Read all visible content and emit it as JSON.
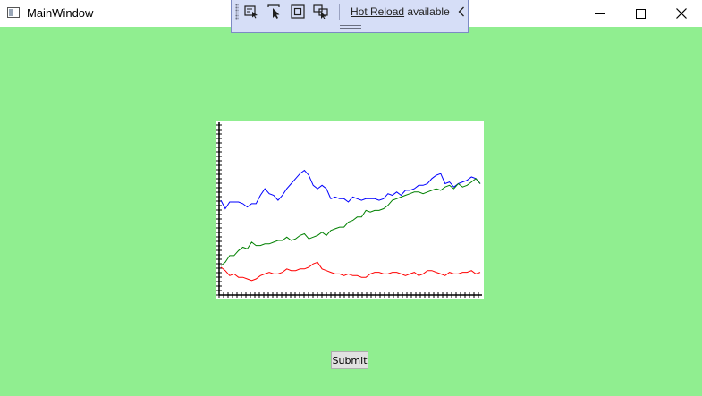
{
  "window": {
    "title": "MainWindow",
    "icon": "app-window-icon",
    "controls": [
      "minimize-icon",
      "maximize-icon",
      "close-icon"
    ]
  },
  "hot_reload_toolbar": {
    "tools": [
      "select-element-icon",
      "pointer-select-icon",
      "element-bounds-icon",
      "track-focus-icon"
    ],
    "link_text": "Hot Reload",
    "status_text": "available",
    "collapse_icon": "chevron-left-icon"
  },
  "colors": {
    "background": "#90ee90",
    "series_blue": "#0000ff",
    "series_green": "#008000",
    "series_red": "#ff0000"
  },
  "chart_data": {
    "type": "line",
    "title": "",
    "xlabel": "",
    "ylabel": "",
    "x": [
      0,
      1,
      2,
      3,
      4,
      5,
      6,
      7,
      8,
      9,
      10,
      11,
      12,
      13,
      14,
      15,
      16,
      17,
      18,
      19,
      20,
      21,
      22,
      23,
      24,
      25,
      26,
      27,
      28,
      29,
      30,
      31,
      32,
      33,
      34,
      35,
      36,
      37,
      38,
      39,
      40,
      41,
      42,
      43,
      44,
      45,
      46,
      47,
      48,
      49,
      50,
      51,
      52,
      53,
      54,
      55,
      56,
      57,
      58,
      59
    ],
    "xlim": [
      0,
      59
    ],
    "ylim": [
      0,
      100
    ],
    "grid": false,
    "series": [
      {
        "color": "#0000ff",
        "values": [
          55,
          50,
          54,
          54,
          54,
          53,
          51,
          53,
          53,
          58,
          62,
          59,
          58,
          55,
          58,
          62,
          65,
          68,
          71,
          73,
          70,
          64,
          62,
          64,
          62,
          56,
          57,
          56,
          56,
          54,
          57,
          56,
          55,
          56,
          56,
          56,
          55,
          56,
          59,
          58,
          60,
          58,
          61,
          61,
          62,
          64,
          64,
          65,
          68,
          70,
          71,
          65,
          66,
          63,
          65,
          66,
          67,
          69,
          68,
          65
        ]
      },
      {
        "color": "#008000",
        "values": [
          16,
          18,
          22,
          22,
          25,
          27,
          26,
          30,
          28,
          28,
          29,
          29,
          30,
          31,
          31,
          33,
          31,
          32,
          34,
          35,
          32,
          33,
          34,
          36,
          34,
          37,
          38,
          39,
          39,
          42,
          43,
          45,
          45,
          49,
          48,
          49,
          49,
          50,
          52,
          55,
          56,
          57,
          58,
          59,
          60,
          60,
          59,
          60,
          61,
          62,
          61,
          63,
          64,
          62,
          65,
          63,
          64,
          66,
          68,
          65
        ]
      },
      {
        "color": "#ff0000",
        "values": [
          15,
          13,
          10,
          11,
          9,
          9,
          8,
          7,
          8,
          10,
          11,
          12,
          11,
          11,
          12,
          14,
          13,
          13,
          14,
          14,
          15,
          17,
          18,
          14,
          13,
          12,
          11,
          11,
          10,
          11,
          10,
          10,
          9,
          9,
          11,
          12,
          12,
          11,
          11,
          12,
          12,
          11,
          10,
          11,
          12,
          10,
          11,
          13,
          13,
          12,
          11,
          10,
          12,
          11,
          11,
          12,
          12,
          13,
          11,
          12
        ]
      }
    ]
  },
  "submit_button": {
    "label": "Submit"
  }
}
